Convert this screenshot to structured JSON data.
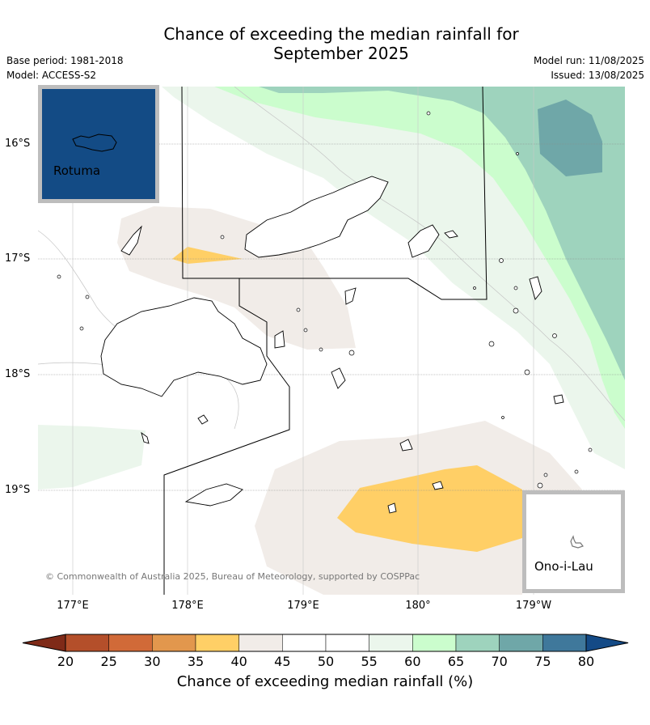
{
  "title_line1": "Chance of exceeding the median rainfall for",
  "title_line2": "September 2025",
  "base_period": "Base period: 1981-2018",
  "model": "Model: ACCESS-S2",
  "model_run": "Model run: 11/08/2025",
  "issued": "Issued: 13/08/2025",
  "lat_labels": [
    "16°S",
    "17°S",
    "18°S",
    "19°S"
  ],
  "lon_labels": [
    "177°E",
    "178°E",
    "179°E",
    "180°",
    "179°W"
  ],
  "insets": {
    "rotuma": "Rotuma",
    "ono": "Ono-i-Lau"
  },
  "copyright": "© Commonwealth of Australia 2025, Bureau of Meteorology, supported by COSPPac",
  "colorbar": {
    "ticks": [
      "20",
      "25",
      "30",
      "35",
      "40",
      "45",
      "50",
      "55",
      "60",
      "65",
      "70",
      "75",
      "80"
    ],
    "label": "Chance of exceeding median rainfall (%)",
    "colors": [
      "#7f2a18",
      "#b44f2a",
      "#d16a38",
      "#e2974d",
      "#ffcf66",
      "#f1ece8",
      "#ffffff",
      "#ffffff",
      "#ebf6ec",
      "#cbfdcd",
      "#9ed3bd",
      "#6fa7a8",
      "#3f789b",
      "#144a86"
    ]
  }
}
